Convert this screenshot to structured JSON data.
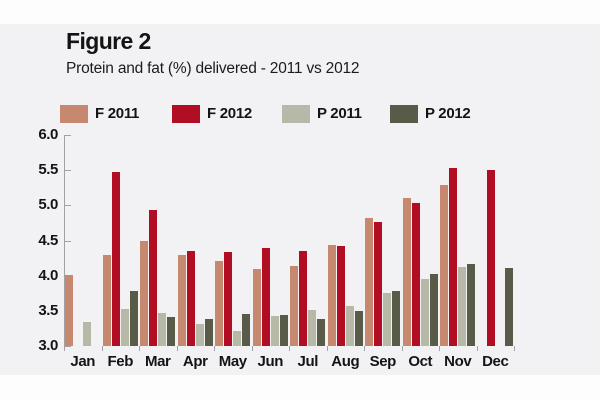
{
  "figure": {
    "title": "Figure 2",
    "subtitle": "Protein and fat (%) delivered - 2011 vs 2012"
  },
  "legend": {
    "items": [
      {
        "label": "F 2011",
        "color": "#c6886f"
      },
      {
        "label": "F 2012",
        "color": "#b10d23"
      },
      {
        "label": "P 2011",
        "color": "#b6b8a8"
      },
      {
        "label": "P 2012",
        "color": "#575b48"
      }
    ]
  },
  "colors": {
    "page_background": "#fdfdfe",
    "card_background": "#f2f2f4",
    "axis": "#a2a2a6",
    "text": "#141414"
  },
  "chart_data": {
    "type": "bar",
    "title": "Protein and fat (%) delivered - 2011 vs 2012",
    "categories": [
      "Jan",
      "Feb",
      "Mar",
      "Apr",
      "May",
      "Jun",
      "Jul",
      "Aug",
      "Sep",
      "Oct",
      "Nov",
      "Dec"
    ],
    "series": [
      {
        "name": "F 2011",
        "color": "#c6886f",
        "values": [
          4.01,
          4.3,
          4.49,
          4.3,
          4.21,
          4.1,
          4.14,
          4.44,
          4.82,
          5.11,
          5.29,
          null
        ]
      },
      {
        "name": "F 2012",
        "color": "#b10d23",
        "values": [
          null,
          5.48,
          4.93,
          4.35,
          4.33,
          4.4,
          4.35,
          4.42,
          4.77,
          5.04,
          5.53,
          5.5
        ]
      },
      {
        "name": "P 2011",
        "color": "#b6b8a8",
        "values": [
          3.34,
          3.52,
          3.47,
          3.31,
          3.22,
          3.43,
          3.51,
          3.57,
          3.76,
          3.95,
          4.12,
          null
        ]
      },
      {
        "name": "P 2012",
        "color": "#575b48",
        "values": [
          null,
          3.78,
          3.41,
          3.38,
          3.46,
          3.44,
          3.38,
          3.5,
          3.78,
          4.02,
          4.16,
          4.11
        ]
      }
    ],
    "xlabel": "",
    "ylabel": "",
    "ylim": [
      3.0,
      6.0
    ],
    "ytick_step": 0.5,
    "ytick_labels": [
      "6.0",
      "5.5",
      "5.0",
      "4.5",
      "4.0",
      "3.5",
      "3.0"
    ],
    "grid": false,
    "legend_position": "top"
  }
}
